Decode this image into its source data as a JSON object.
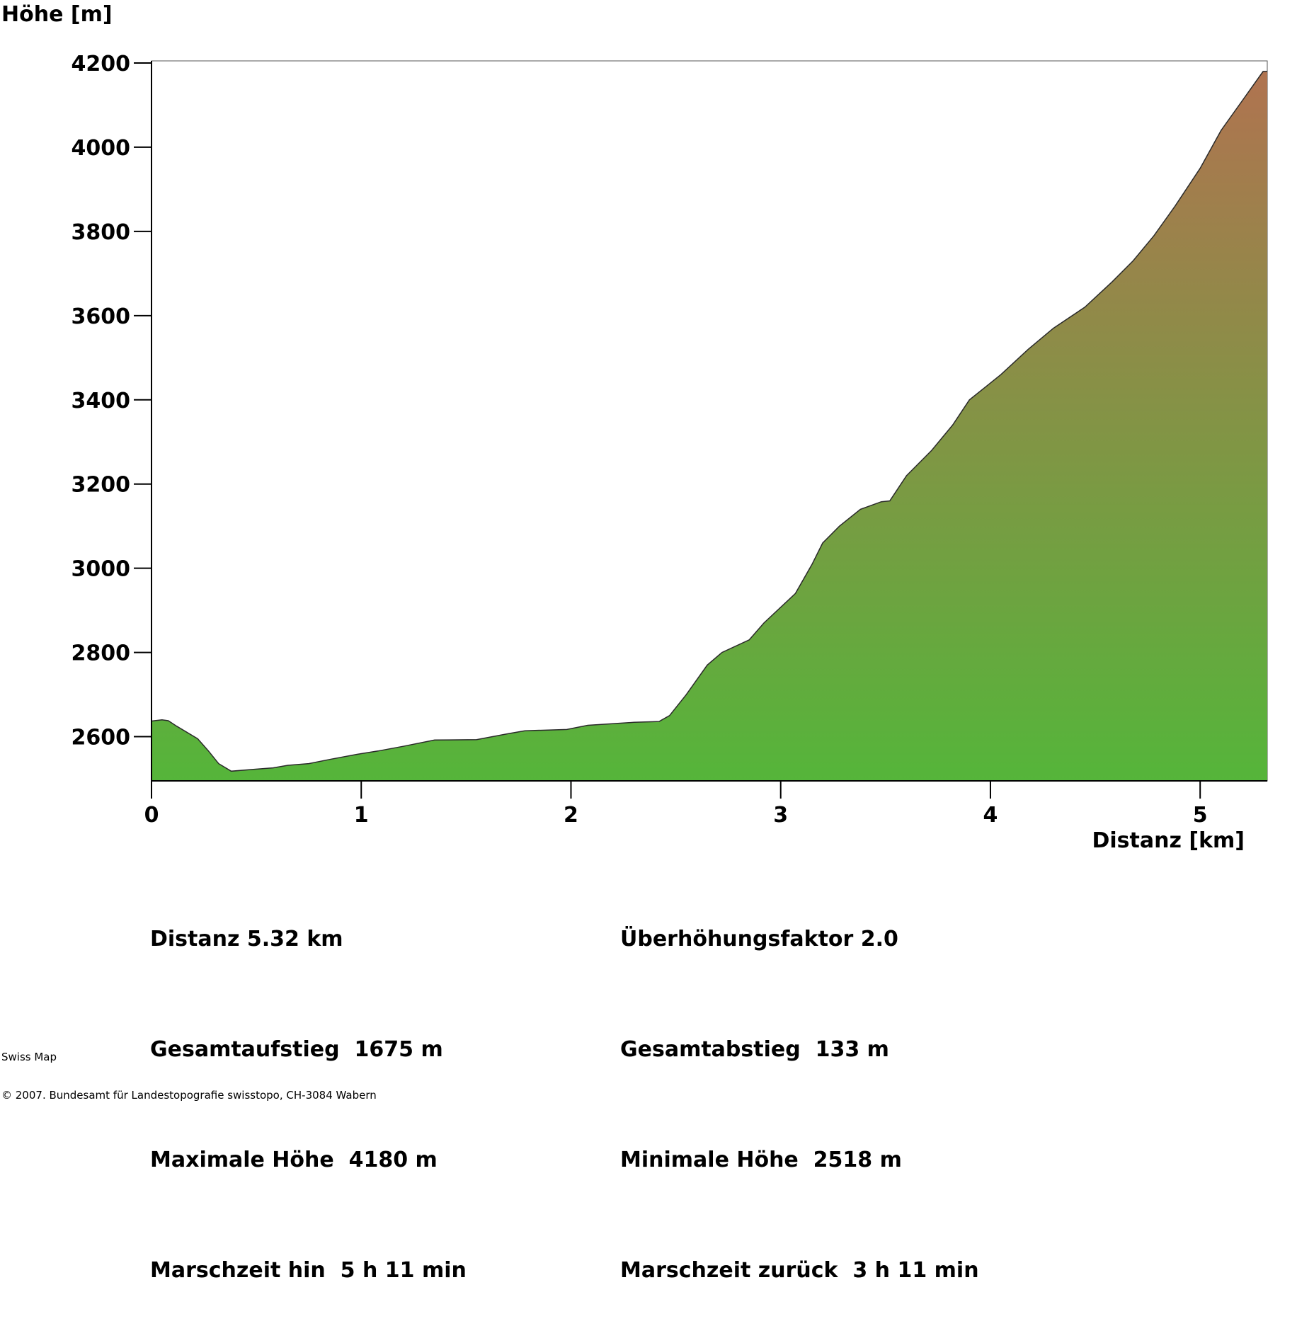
{
  "chart_data": {
    "type": "area",
    "ylabel": "Höhe [m]",
    "xlabel": "Distanz [km]",
    "xlim": [
      0,
      5.32
    ],
    "ylim": [
      2495,
      4205
    ],
    "x_ticks": [
      "0",
      "1",
      "2",
      "3",
      "4",
      "5"
    ],
    "y_ticks": [
      "2600",
      "2800",
      "3000",
      "3200",
      "3400",
      "3600",
      "3800",
      "4000",
      "4200"
    ],
    "fill_gradient": {
      "bottom": "#55b53a",
      "top": "#b07350"
    },
    "grid": false,
    "series": [
      {
        "x": [
          0,
          0.05,
          0.08,
          0.12,
          0.22,
          0.27,
          0.32,
          0.38,
          0.48,
          0.58,
          0.65,
          0.75,
          0.85,
          0.98,
          1.08,
          1.2,
          1.35,
          1.55,
          1.7,
          1.78,
          1.98,
          2.08,
          2.3,
          2.42,
          2.47,
          2.55,
          2.65,
          2.72,
          2.85,
          2.92,
          3.07,
          3.15,
          3.2,
          3.28,
          3.38,
          3.48,
          3.52,
          3.6,
          3.72,
          3.82,
          3.9,
          4.05,
          4.18,
          4.3,
          4.45,
          4.58,
          4.68,
          4.78,
          4.88,
          5.0,
          5.1,
          5.2,
          5.3,
          5.32
        ],
        "values": [
          2637,
          2640,
          2638,
          2625,
          2595,
          2567,
          2536,
          2518,
          2522,
          2526,
          2532,
          2536,
          2546,
          2558,
          2566,
          2577,
          2592,
          2593,
          2607,
          2614,
          2617,
          2627,
          2634,
          2636,
          2650,
          2700,
          2770,
          2800,
          2830,
          2870,
          2940,
          3010,
          3060,
          3100,
          3140,
          3158,
          3160,
          3220,
          3280,
          3340,
          3400,
          3460,
          3520,
          3570,
          3620,
          3680,
          3730,
          3790,
          3860,
          3950,
          4040,
          4110,
          4180,
          4180
        ]
      }
    ]
  },
  "stats": {
    "distance": "Distanz 5.32 km",
    "exaggeration": "Überhöhungsfaktor 2.0",
    "ascent": "Gesamtaufstieg  1675 m",
    "descent": "Gesamtabstieg  133 m",
    "max_height": "Maximale Höhe  4180 m",
    "min_height": "Minimale Höhe  2518 m",
    "time_forward": "Marschzeit hin  5 h 11 min",
    "time_back": "Marschzeit zurück  3 h 11 min"
  },
  "footer": {
    "line1": "Swiss Map",
    "line2": "© 2007. Bundesamt für Landestopografie swisstopo, CH-3084 Wabern"
  }
}
